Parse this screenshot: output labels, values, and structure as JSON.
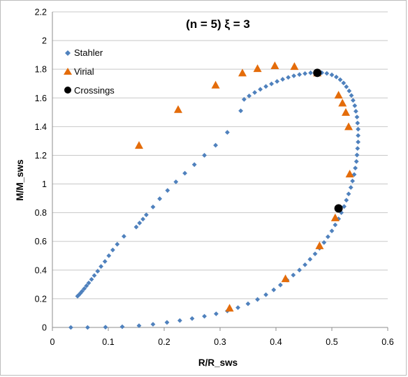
{
  "chart_data": {
    "type": "scatter",
    "title": "(n = 5)   ξ = 3",
    "xlabel": "R/R_sws",
    "ylabel": "M/M_sws",
    "xlim": [
      0,
      0.6
    ],
    "ylim": [
      0,
      2.2
    ],
    "x_ticks": [
      "0",
      "0.1",
      "0.2",
      "0.3",
      "0.4",
      "0.5",
      "0.6"
    ],
    "y_ticks": [
      "0",
      "0.2",
      "0.4",
      "0.6",
      "0.8",
      "1",
      "1.2",
      "1.4",
      "1.6",
      "1.8",
      "2",
      "2.2"
    ],
    "grid": "horizontal",
    "legend_position": "top-left",
    "series": [
      {
        "name": "Stahler",
        "marker": "diamond",
        "color": "#4f81bd",
        "points": [
          [
            0.033,
            0.0
          ],
          [
            0.063,
            0.0
          ],
          [
            0.095,
            0.002
          ],
          [
            0.125,
            0.005
          ],
          [
            0.155,
            0.012
          ],
          [
            0.18,
            0.022
          ],
          [
            0.205,
            0.035
          ],
          [
            0.228,
            0.048
          ],
          [
            0.25,
            0.062
          ],
          [
            0.272,
            0.078
          ],
          [
            0.293,
            0.095
          ],
          [
            0.313,
            0.115
          ],
          [
            0.332,
            0.138
          ],
          [
            0.35,
            0.165
          ],
          [
            0.367,
            0.195
          ],
          [
            0.382,
            0.228
          ],
          [
            0.396,
            0.262
          ],
          [
            0.408,
            0.296
          ],
          [
            0.42,
            0.33
          ],
          [
            0.431,
            0.365
          ],
          [
            0.442,
            0.4
          ],
          [
            0.452,
            0.437
          ],
          [
            0.461,
            0.475
          ],
          [
            0.47,
            0.513
          ],
          [
            0.478,
            0.552
          ],
          [
            0.486,
            0.592
          ],
          [
            0.493,
            0.632
          ],
          [
            0.5,
            0.673
          ],
          [
            0.506,
            0.715
          ],
          [
            0.512,
            0.757
          ],
          [
            0.517,
            0.8
          ],
          [
            0.522,
            0.843
          ],
          [
            0.526,
            0.887
          ],
          [
            0.53,
            0.931
          ],
          [
            0.534,
            0.976
          ],
          [
            0.537,
            1.021
          ],
          [
            0.54,
            1.066
          ],
          [
            0.542,
            1.111
          ],
          [
            0.544,
            1.157
          ],
          [
            0.545,
            1.202
          ],
          [
            0.546,
            1.248
          ],
          [
            0.547,
            1.293
          ],
          [
            0.547,
            1.338
          ],
          [
            0.547,
            1.382
          ],
          [
            0.546,
            1.425
          ],
          [
            0.545,
            1.467
          ],
          [
            0.543,
            1.507
          ],
          [
            0.541,
            1.546
          ],
          [
            0.538,
            1.583
          ],
          [
            0.535,
            1.617
          ],
          [
            0.531,
            1.649
          ],
          [
            0.526,
            1.678
          ],
          [
            0.521,
            1.704
          ],
          [
            0.515,
            1.727
          ],
          [
            0.508,
            1.746
          ],
          [
            0.5,
            1.761
          ],
          [
            0.491,
            1.771
          ],
          [
            0.482,
            1.776
          ],
          [
            0.472,
            1.777
          ],
          [
            0.462,
            1.775
          ],
          [
            0.452,
            1.77
          ],
          [
            0.442,
            1.763
          ],
          [
            0.432,
            1.754
          ],
          [
            0.422,
            1.743
          ],
          [
            0.412,
            1.73
          ],
          [
            0.402,
            1.715
          ],
          [
            0.392,
            1.698
          ],
          [
            0.382,
            1.68
          ],
          [
            0.372,
            1.66
          ],
          [
            0.362,
            1.638
          ],
          [
            0.352,
            1.614
          ],
          [
            0.343,
            1.59
          ],
          [
            0.337,
            1.51
          ],
          [
            0.313,
            1.36
          ],
          [
            0.292,
            1.27
          ],
          [
            0.272,
            1.2
          ],
          [
            0.254,
            1.135
          ],
          [
            0.237,
            1.075
          ],
          [
            0.221,
            1.015
          ],
          [
            0.206,
            0.955
          ],
          [
            0.192,
            0.897
          ],
          [
            0.18,
            0.84
          ],
          [
            0.168,
            0.785
          ],
          [
            0.162,
            0.755
          ],
          [
            0.156,
            0.728
          ],
          [
            0.15,
            0.7
          ],
          [
            0.128,
            0.635
          ],
          [
            0.116,
            0.58
          ],
          [
            0.108,
            0.54
          ],
          [
            0.101,
            0.5
          ],
          [
            0.094,
            0.46
          ],
          [
            0.087,
            0.425
          ],
          [
            0.081,
            0.392
          ],
          [
            0.075,
            0.362
          ],
          [
            0.07,
            0.335
          ],
          [
            0.065,
            0.31
          ],
          [
            0.061,
            0.29
          ],
          [
            0.057,
            0.27
          ],
          [
            0.053,
            0.252
          ],
          [
            0.05,
            0.238
          ],
          [
            0.047,
            0.225
          ],
          [
            0.045,
            0.218
          ]
        ]
      },
      {
        "name": "Virial",
        "marker": "triangle",
        "color": "#e46c0a",
        "points": [
          [
            0.155,
            1.27
          ],
          [
            0.225,
            1.52
          ],
          [
            0.292,
            1.69
          ],
          [
            0.34,
            1.775
          ],
          [
            0.367,
            1.805
          ],
          [
            0.398,
            1.825
          ],
          [
            0.433,
            1.82
          ],
          [
            0.474,
            1.775
          ],
          [
            0.512,
            1.62
          ],
          [
            0.519,
            1.565
          ],
          [
            0.525,
            1.5
          ],
          [
            0.53,
            1.4
          ],
          [
            0.532,
            1.07
          ],
          [
            0.506,
            0.765
          ],
          [
            0.478,
            0.57
          ],
          [
            0.417,
            0.34
          ],
          [
            0.317,
            0.135
          ]
        ]
      },
      {
        "name": "Crossings",
        "marker": "circle",
        "color": "#000000",
        "points": [
          [
            0.474,
            1.775
          ],
          [
            0.512,
            0.83
          ]
        ]
      }
    ]
  }
}
